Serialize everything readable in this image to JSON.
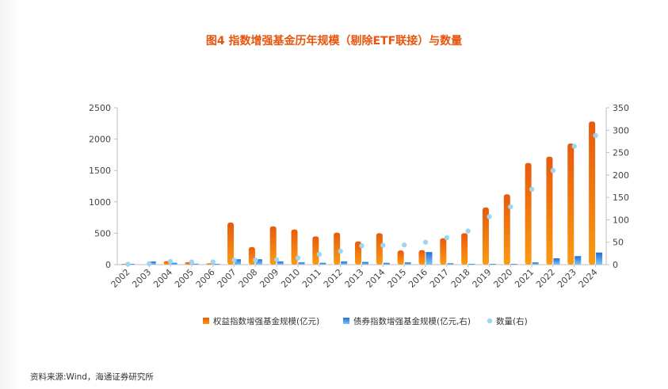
{
  "title": "图4 指数增强基金历年规模（剔除ETF联接）与数量",
  "source": "资料来源:Wind，海通证券研究所",
  "colors": {
    "equity_top": "#e85a0c",
    "equity_bottom": "#fb9a12",
    "bond_top": "#1f6fd6",
    "bond_bottom": "#7cc4f5",
    "count": "#9ed6f2",
    "title": "#e8540b"
  },
  "chart_data": {
    "type": "bar",
    "categories": [
      "2002",
      "2003",
      "2004",
      "2005",
      "2006",
      "2007",
      "2008",
      "2009",
      "2010",
      "2011",
      "2012",
      "2013",
      "2014",
      "2015",
      "2016",
      "2017",
      "2018",
      "2019",
      "2020",
      "2021",
      "2022",
      "2023",
      "2024"
    ],
    "series": [
      {
        "name": "权益指数增强基金规模(亿元)",
        "type": "bar",
        "axis": "left",
        "values": [
          5,
          0,
          55,
          40,
          20,
          670,
          280,
          610,
          560,
          450,
          510,
          370,
          500,
          225,
          230,
          420,
          500,
          910,
          1120,
          1620,
          1720,
          1930,
          2280
        ]
      },
      {
        "name": "债券指数增强基金规模(亿元,右)",
        "type": "bar",
        "axis": "right",
        "values": [
          1,
          7,
          4,
          2,
          1,
          12,
          12,
          7,
          5,
          4,
          7,
          6,
          4,
          5,
          28,
          3,
          1,
          1,
          1,
          5,
          14,
          19,
          27
        ]
      },
      {
        "name": "数量(右)",
        "type": "scatter",
        "axis": "right",
        "values": [
          1,
          2,
          7,
          6,
          6,
          10,
          10,
          11,
          15,
          23,
          30,
          42,
          43,
          44,
          50,
          60,
          75,
          107,
          129,
          168,
          210,
          264,
          288
        ]
      }
    ],
    "yleft": {
      "min": 0,
      "max": 2500,
      "ticks": [
        0,
        500,
        1000,
        1500,
        2000,
        2500
      ]
    },
    "yright": {
      "min": 0,
      "max": 350,
      "ticks": [
        0,
        50,
        100,
        150,
        200,
        250,
        300,
        350
      ]
    },
    "legend_position": "bottom",
    "grid": false
  }
}
